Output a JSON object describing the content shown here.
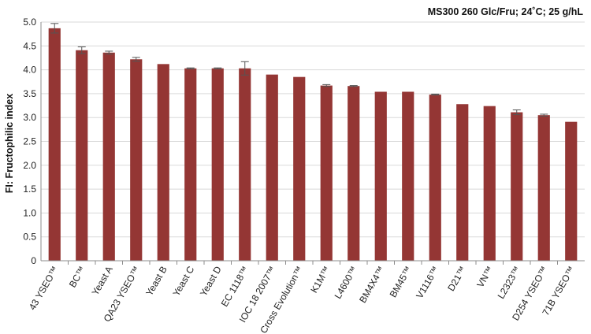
{
  "chart_data": {
    "type": "bar",
    "title": "MS300 260 Glc/Fru; 24˚C; 25 g/hL",
    "ylabel": "FI: Fructophilic index",
    "xlabel": "",
    "ylim": [
      0,
      5.0
    ],
    "ytick_step": 0.5,
    "yticks": [
      "0",
      "0.5",
      "1.0",
      "1.5",
      "2.0",
      "2.5",
      "3.0",
      "3.5",
      "4.0",
      "4.5",
      "5.0"
    ],
    "grid": true,
    "bar_color": "#943634",
    "categories": [
      "43 YSEO™",
      "BC™",
      "Yeast A",
      "QA23 YSEO™",
      "Yeast B",
      "Yeast C",
      "Yeast D",
      "EC 1118™",
      "IOC 18 2007™",
      "Cross Evolution™",
      "K1M™",
      "L4600™",
      "BM4X4™",
      "BM45™",
      "V1116™",
      "D21™",
      "VN™",
      "L2323™",
      "D254 YSEO™",
      "71B YSEO™"
    ],
    "values": [
      4.87,
      4.41,
      4.36,
      4.22,
      4.12,
      4.03,
      4.03,
      4.03,
      3.9,
      3.85,
      3.67,
      3.66,
      3.54,
      3.54,
      3.48,
      3.28,
      3.24,
      3.11,
      3.05,
      2.91
    ],
    "errors": [
      0.1,
      0.07,
      0.03,
      0.04,
      0.0,
      0.01,
      0.01,
      0.14,
      0.0,
      0.0,
      0.02,
      0.01,
      0.0,
      0.0,
      0.01,
      0.0,
      0.0,
      0.05,
      0.02,
      0.0
    ]
  }
}
